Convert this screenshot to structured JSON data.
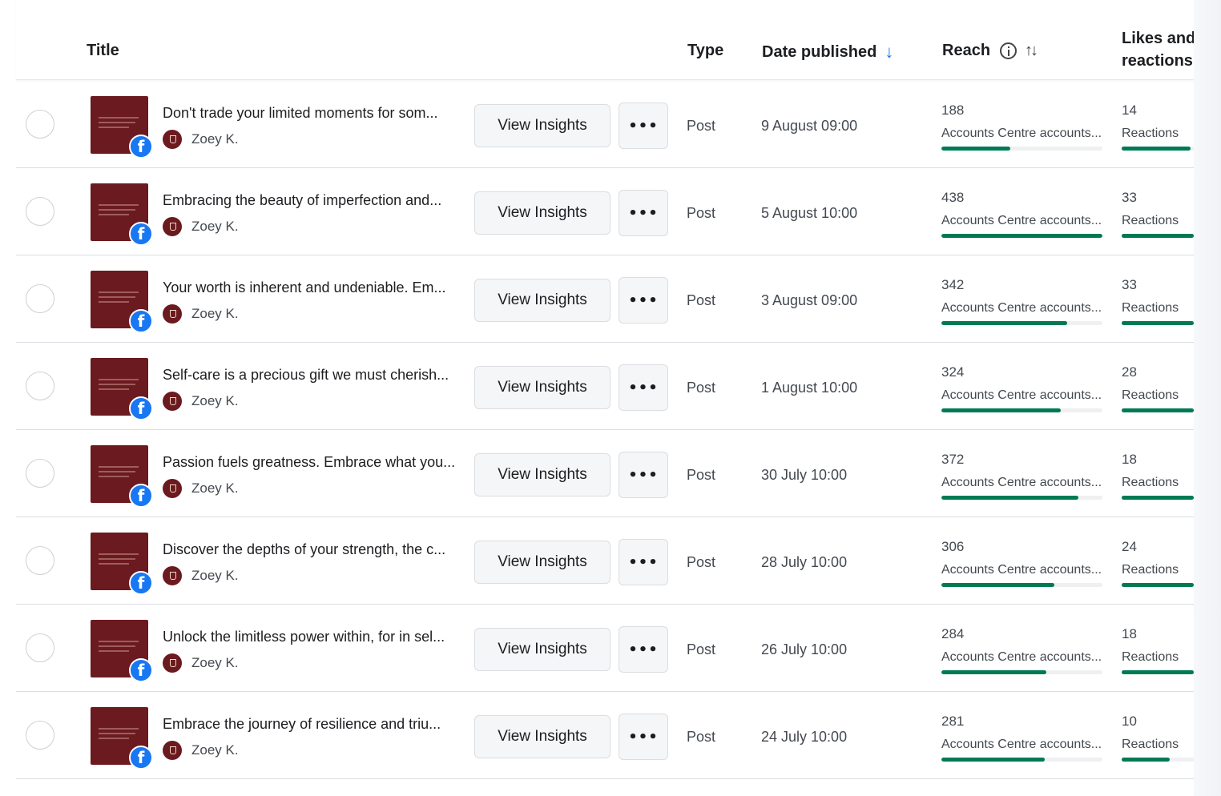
{
  "header": {
    "title": "Title",
    "type": "Type",
    "date_published": "Date published",
    "date_sort_icon": "arrow-down-icon",
    "reach": "Reach",
    "reach_info_icon": "info-icon",
    "reach_sort_icon": "sort-icon",
    "likes_line1": "Likes and",
    "likes_line2": "reactions"
  },
  "colors": {
    "accent": "#1877f2",
    "bar": "#007a55",
    "thumbnail": "#6b1a1f"
  },
  "rows": [
    {
      "title": "Don't trade your limited moments for som...",
      "author": "Zoey K.",
      "button": "View Insights",
      "more": "•••",
      "type": "Post",
      "date": "9 August 09:00",
      "reach": "188",
      "reach_label": "Accounts Centre accounts...",
      "reach_fraction": 0.43,
      "likes": "14",
      "likes_label": "Reactions",
      "likes_fraction": 0.95
    },
    {
      "title": "Embracing the beauty of imperfection and...",
      "author": "Zoey K.",
      "button": "View Insights",
      "more": "•••",
      "type": "Post",
      "date": "5 August 10:00",
      "reach": "438",
      "reach_label": "Accounts Centre accounts...",
      "reach_fraction": 1.0,
      "likes": "33",
      "likes_label": "Reactions",
      "likes_fraction": 1.0
    },
    {
      "title": "Your worth is inherent and undeniable. Em...",
      "author": "Zoey K.",
      "button": "View Insights",
      "more": "•••",
      "type": "Post",
      "date": "3 August 09:00",
      "reach": "342",
      "reach_label": "Accounts Centre accounts...",
      "reach_fraction": 0.78,
      "likes": "33",
      "likes_label": "Reactions",
      "likes_fraction": 1.0
    },
    {
      "title": "Self-care is a precious gift we must cherish...",
      "author": "Zoey K.",
      "button": "View Insights",
      "more": "•••",
      "type": "Post",
      "date": "1 August 10:00",
      "reach": "324",
      "reach_label": "Accounts Centre accounts...",
      "reach_fraction": 0.74,
      "likes": "28",
      "likes_label": "Reactions",
      "likes_fraction": 1.0
    },
    {
      "title": "Passion fuels greatness. Embrace what you...",
      "author": "Zoey K.",
      "button": "View Insights",
      "more": "•••",
      "type": "Post",
      "date": "30 July 10:00",
      "reach": "372",
      "reach_label": "Accounts Centre accounts...",
      "reach_fraction": 0.85,
      "likes": "18",
      "likes_label": "Reactions",
      "likes_fraction": 1.0
    },
    {
      "title": "Discover the depths of your strength, the c...",
      "author": "Zoey K.",
      "button": "View Insights",
      "more": "•••",
      "type": "Post",
      "date": "28 July 10:00",
      "reach": "306",
      "reach_label": "Accounts Centre accounts...",
      "reach_fraction": 0.7,
      "likes": "24",
      "likes_label": "Reactions",
      "likes_fraction": 1.0
    },
    {
      "title": "Unlock the limitless power within, for in sel...",
      "author": "Zoey K.",
      "button": "View Insights",
      "more": "•••",
      "type": "Post",
      "date": "26 July 10:00",
      "reach": "284",
      "reach_label": "Accounts Centre accounts...",
      "reach_fraction": 0.65,
      "likes": "18",
      "likes_label": "Reactions",
      "likes_fraction": 1.0
    },
    {
      "title": "Embrace the journey of resilience and triu...",
      "author": "Zoey K.",
      "button": "View Insights",
      "more": "•••",
      "type": "Post",
      "date": "24 July 10:00",
      "reach": "281",
      "reach_label": "Accounts Centre accounts...",
      "reach_fraction": 0.64,
      "likes": "10",
      "likes_label": "Reactions",
      "likes_fraction": 0.67
    }
  ]
}
